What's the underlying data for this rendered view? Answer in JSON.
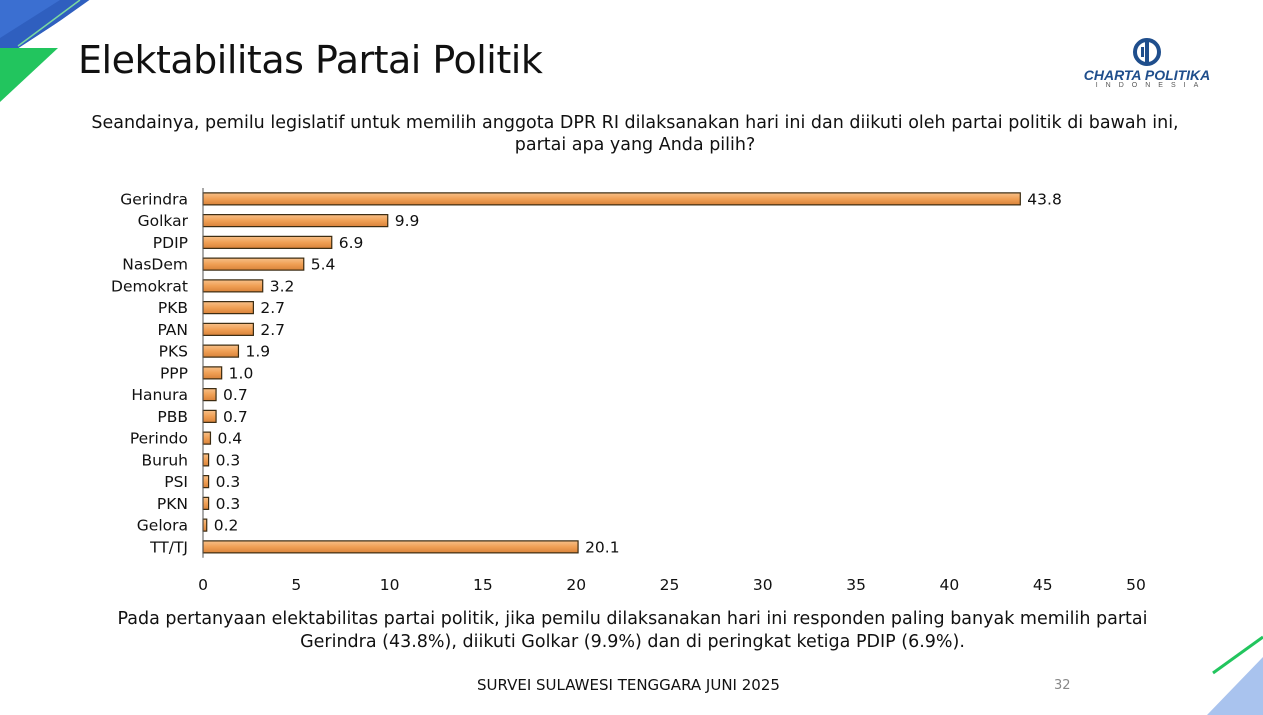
{
  "slide": {
    "title": "Elektabilitas Partai Politik",
    "question": "Seandainya, pemilu legislatif untuk memilih anggota DPR RI dilaksanakan hari ini dan diikuti oleh partai politik di bawah ini, partai apa yang Anda pilih?",
    "conclusion": "Pada pertanyaan elektabilitas partai politik, jika pemilu dilaksanakan hari ini responden paling banyak memilih partai Gerindra (43.8%), diikuti Golkar (9.9%) dan di peringkat ketiga  PDIP (6.9%).",
    "footer": "SURVEI SULAWESI TENGGARA JUNI 2025",
    "page_number": "32",
    "accent_colors": {
      "green": "#22c55e",
      "blue": "#3b6fd1"
    }
  },
  "logo": {
    "name": "CHARTA POLITIKA",
    "subtitle": "INDONESIA",
    "color": "#1f4e8c"
  },
  "chart_data": {
    "type": "bar",
    "orientation": "horizontal",
    "categories": [
      "Gerindra",
      "Golkar",
      "PDIP",
      "NasDem",
      "Demokrat",
      "PKB",
      "PAN",
      "PKS",
      "PPP",
      "Hanura",
      "PBB",
      "Perindo",
      "Buruh",
      "PSI",
      "PKN",
      "Gelora",
      "TT/TJ"
    ],
    "values": [
      43.8,
      9.9,
      6.9,
      5.4,
      3.2,
      2.7,
      2.7,
      1.9,
      1.0,
      0.7,
      0.7,
      0.4,
      0.3,
      0.3,
      0.3,
      0.2,
      20.1
    ],
    "value_labels": [
      "43.8",
      "9.9",
      "6.9",
      "5.4",
      "3.2",
      "2.7",
      "2.7",
      "1.9",
      "1.0",
      "0.7",
      "0.7",
      "0.4",
      "0.3",
      "0.3",
      "0.3",
      "0.2",
      "20.1"
    ],
    "xlim": [
      0,
      50
    ],
    "xticks": [
      "0",
      "5",
      "10",
      "15",
      "20",
      "25",
      "30",
      "35",
      "40",
      "45",
      "50"
    ],
    "grid": false,
    "bar_color": "#f0a055",
    "bar_edge_color": "#3a2a10"
  }
}
